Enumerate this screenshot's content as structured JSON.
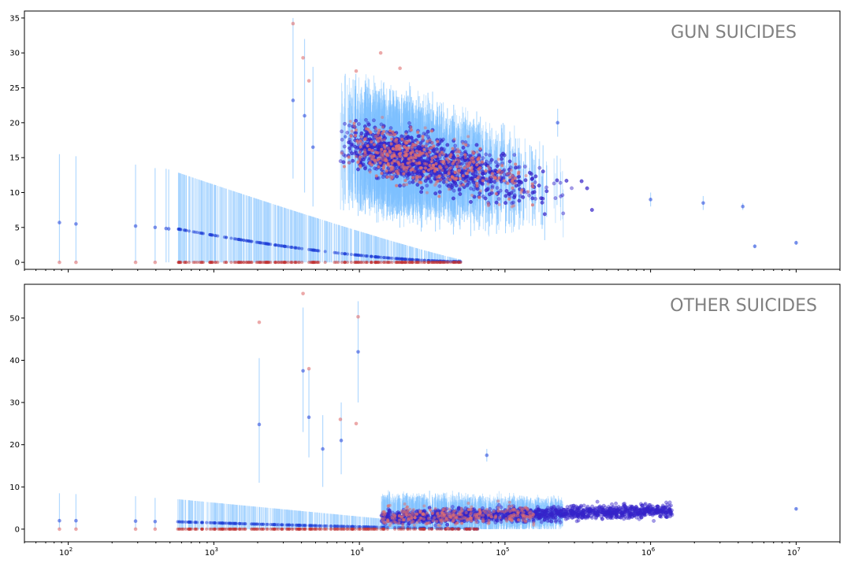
{
  "chart_data": [
    {
      "type": "scatter",
      "title": "GUN SUICIDES",
      "xscale": "log",
      "xlim": [
        50,
        20000000
      ],
      "ylim": [
        -1,
        36
      ],
      "yticks": [
        0,
        5,
        10,
        15,
        20,
        25,
        30,
        35
      ],
      "xticks_labeled": false,
      "series": [
        {
          "role": "model estimate (blue, with vertical uncertainty bars)",
          "color": "#1f3fd8",
          "errorbar_color": "#9fd0ff",
          "points": [
            {
              "x": 87,
              "y": 5.7,
              "lo": 0,
              "hi": 15.5
            },
            {
              "x": 113,
              "y": 5.5,
              "lo": 0,
              "hi": 15.2
            },
            {
              "x": 290,
              "y": 5.2,
              "lo": 0,
              "hi": 14.0
            },
            {
              "x": 395,
              "y": 5.0,
              "lo": 0,
              "hi": 13.5
            },
            {
              "x": 470,
              "y": 4.85,
              "lo": 0,
              "hi": 13.4
            },
            {
              "x": 490,
              "y": 4.8,
              "lo": 0,
              "hi": 13.3
            },
            {
              "x": 3500,
              "y": 23.2,
              "lo": 12.0,
              "hi": 35.0
            },
            {
              "x": 4200,
              "y": 21.0,
              "lo": 10.0,
              "hi": 32.0
            },
            {
              "x": 4800,
              "y": 16.5,
              "lo": 8.0,
              "hi": 28.0
            },
            {
              "x": 8000,
              "y": 18.0,
              "lo": 9.0,
              "hi": 27.0
            },
            {
              "x": 230000,
              "y": 20.0,
              "lo": 18.0,
              "hi": 22.0
            },
            {
              "x": 1000000,
              "y": 9.0,
              "lo": 8.0,
              "hi": 10.0
            },
            {
              "x": 2300000,
              "y": 8.5,
              "lo": 7.5,
              "hi": 9.5
            },
            {
              "x": 4300000,
              "y": 8.0,
              "lo": 7.5,
              "hi": 8.5
            },
            {
              "x": 5200000,
              "y": 2.3,
              "lo": 2.0,
              "hi": 2.6
            },
            {
              "x": 10000000,
              "y": 2.8,
              "lo": 2.5,
              "hi": 3.1
            }
          ]
        },
        {
          "role": "observed rate (red)",
          "color": "#e07070",
          "points": [
            {
              "x": 87,
              "y": 0
            },
            {
              "x": 113,
              "y": 0
            },
            {
              "x": 290,
              "y": 0
            },
            {
              "x": 395,
              "y": 0
            },
            {
              "x": 3500,
              "y": 34.2
            },
            {
              "x": 4100,
              "y": 29.3
            },
            {
              "x": 4500,
              "y": 26.0
            },
            {
              "x": 9500,
              "y": 27.4
            },
            {
              "x": 14000,
              "y": 30.0
            },
            {
              "x": 19000,
              "y": 27.8
            }
          ]
        }
      ]
    },
    {
      "type": "scatter",
      "title": "OTHER SUICIDES",
      "xscale": "log",
      "xlim": [
        50,
        20000000
      ],
      "ylim": [
        -3,
        58
      ],
      "yticks": [
        0,
        10,
        20,
        30,
        40,
        50
      ],
      "xticks": [
        100,
        1000,
        10000,
        100000,
        1000000,
        10000000
      ],
      "xtick_labels": [
        "10^2",
        "10^3",
        "10^4",
        "10^5",
        "10^6",
        "10^7"
      ],
      "series": [
        {
          "role": "model estimate (blue, with vertical uncertainty bars)",
          "color": "#1f3fd8",
          "errorbar_color": "#9fd0ff",
          "points": [
            {
              "x": 87,
              "y": 2.0,
              "lo": 0,
              "hi": 8.5
            },
            {
              "x": 113,
              "y": 2.0,
              "lo": 0,
              "hi": 8.3
            },
            {
              "x": 290,
              "y": 1.9,
              "lo": 0,
              "hi": 7.8
            },
            {
              "x": 395,
              "y": 1.8,
              "lo": 0,
              "hi": 7.4
            },
            {
              "x": 2050,
              "y": 24.8,
              "lo": 11.0,
              "hi": 40.5
            },
            {
              "x": 4100,
              "y": 37.5,
              "lo": 23.0,
              "hi": 52.5
            },
            {
              "x": 4500,
              "y": 26.5,
              "lo": 17.0,
              "hi": 38.0
            },
            {
              "x": 5600,
              "y": 19.0,
              "lo": 10.0,
              "hi": 27.0
            },
            {
              "x": 7500,
              "y": 21.0,
              "lo": 13.0,
              "hi": 30.0
            },
            {
              "x": 9800,
              "y": 42.0,
              "lo": 30.0,
              "hi": 54.0
            },
            {
              "x": 75000,
              "y": 17.5,
              "lo": 16.0,
              "hi": 19.0
            },
            {
              "x": 10000000,
              "y": 4.8,
              "lo": 4.5,
              "hi": 5.1
            }
          ]
        },
        {
          "role": "observed rate (red)",
          "color": "#e07070",
          "points": [
            {
              "x": 87,
              "y": 0
            },
            {
              "x": 113,
              "y": 0
            },
            {
              "x": 290,
              "y": 0
            },
            {
              "x": 395,
              "y": 0
            },
            {
              "x": 2050,
              "y": 49.0
            },
            {
              "x": 4100,
              "y": 55.8
            },
            {
              "x": 4500,
              "y": 38.0
            },
            {
              "x": 9800,
              "y": 50.3
            },
            {
              "x": 9500,
              "y": 25.0
            },
            {
              "x": 7400,
              "y": 26.0
            }
          ]
        }
      ]
    }
  ]
}
